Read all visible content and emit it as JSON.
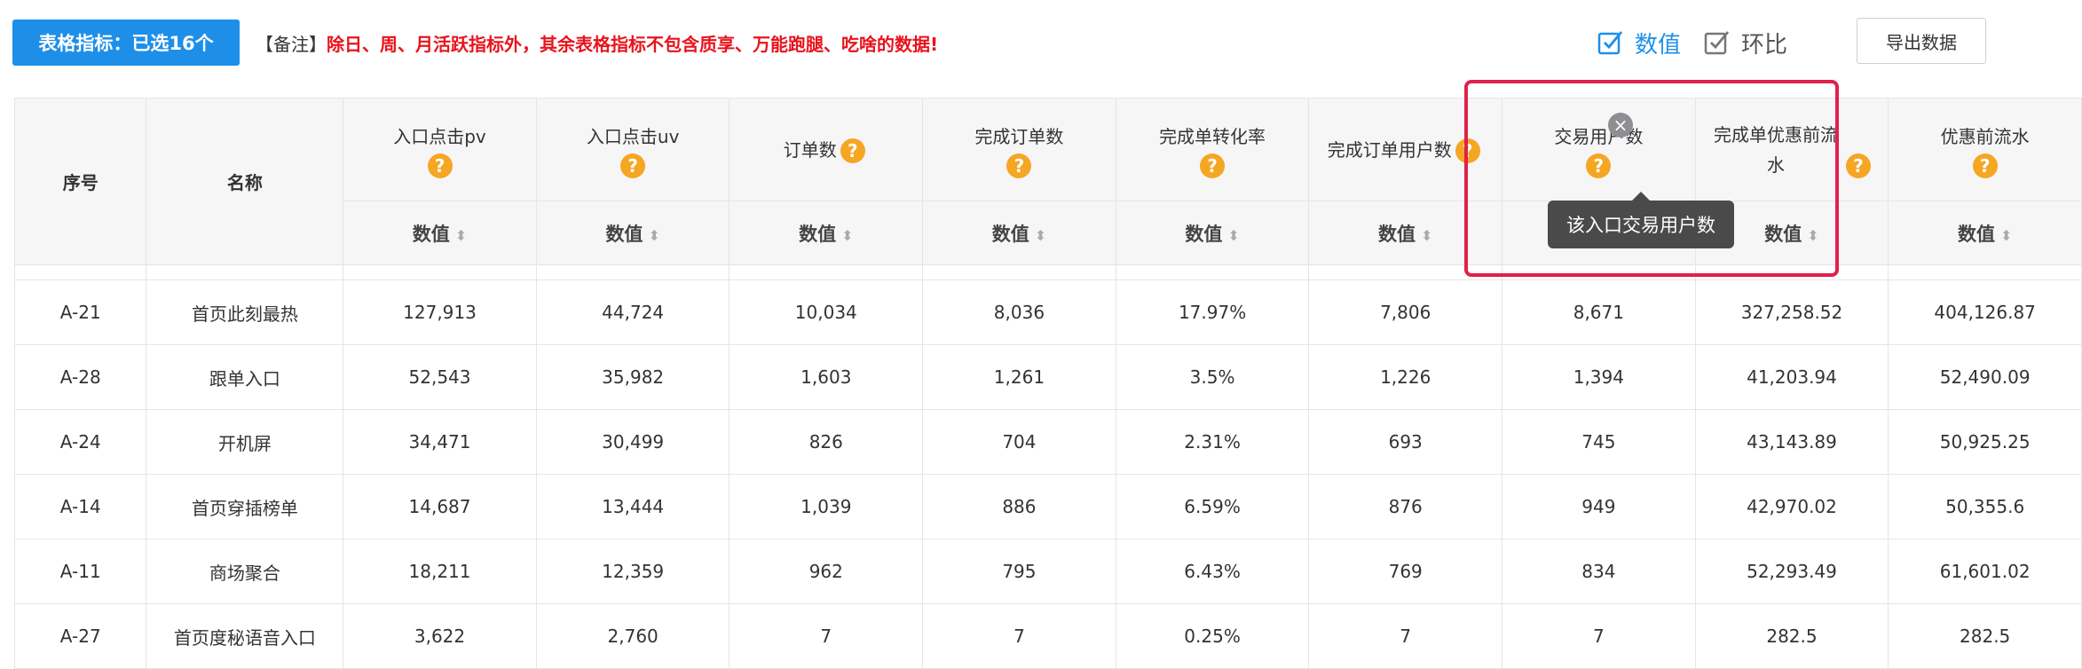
{
  "toolbar": {
    "metrics_button": "表格指标：已选16个",
    "note_prefix": "【备注】",
    "note_text": "除日、周、月活跃指标外，其余表格指标不包含质享、万能跑腿、吃啥的数据!",
    "check_value": "数值",
    "check_ring": "环比",
    "export": "导出数据",
    "accent_color": "#1e8fe8",
    "warn_color": "#e8131c"
  },
  "table": {
    "headers": {
      "index": "序号",
      "name": "名称",
      "columns": [
        "入口点击pv",
        "入口点击uv",
        "订单数",
        "完成订单数",
        "完成单转化率",
        "完成订单用户数",
        "交易用户数",
        "完成单优惠前流水",
        "优惠前流水"
      ],
      "sub_label": "数值",
      "help_icon": "?"
    },
    "rows": [
      {
        "id": "A-21",
        "name": "首页此刻最热",
        "values": [
          "127,913",
          "44,724",
          "10,034",
          "8,036",
          "17.97%",
          "7,806",
          "8,671",
          "327,258.52",
          "404,126.87"
        ]
      },
      {
        "id": "A-28",
        "name": "跟单入口",
        "values": [
          "52,543",
          "35,982",
          "1,603",
          "1,261",
          "3.5%",
          "1,226",
          "1,394",
          "41,203.94",
          "52,490.09"
        ]
      },
      {
        "id": "A-24",
        "name": "开机屏",
        "values": [
          "34,471",
          "30,499",
          "826",
          "704",
          "2.31%",
          "693",
          "745",
          "43,143.89",
          "50,925.25"
        ]
      },
      {
        "id": "A-14",
        "name": "首页穿插榜单",
        "values": [
          "14,687",
          "13,444",
          "1,039",
          "886",
          "6.59%",
          "876",
          "949",
          "42,970.02",
          "50,355.6"
        ]
      },
      {
        "id": "A-11",
        "name": "商场聚合",
        "values": [
          "18,211",
          "12,359",
          "962",
          "795",
          "6.43%",
          "769",
          "834",
          "52,293.49",
          "61,601.02"
        ]
      },
      {
        "id": "A-27",
        "name": "首页度秘语音入口",
        "values": [
          "3,622",
          "2,760",
          "7",
          "7",
          "0.25%",
          "7",
          "7",
          "282.5",
          "282.5"
        ]
      }
    ]
  },
  "tooltip": {
    "text": "该入口交易用户数",
    "close_icon": "×"
  },
  "highlight_color": "#e0204b"
}
